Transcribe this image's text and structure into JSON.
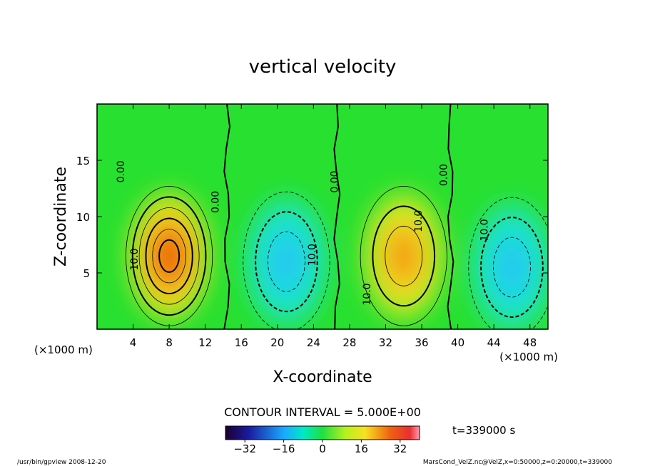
{
  "chart_data": {
    "type": "heatmap",
    "title": "vertical velocity",
    "xlabel": "X-coordinate",
    "ylabel": "Z-coordinate",
    "x_unit_left": "(×1000 m)",
    "x_unit_right": "(×1000 m)",
    "xlim": [
      0,
      50
    ],
    "ylim": [
      0,
      20
    ],
    "x_ticks": [
      4,
      8,
      12,
      16,
      20,
      24,
      28,
      32,
      36,
      40,
      44,
      48
    ],
    "y_ticks": [
      5,
      10,
      15
    ],
    "contour_interval_text": "CONTOUR INTERVAL = 5.000E+00",
    "contour_labels": [
      {
        "text": "0.00",
        "x": 3.0,
        "y": 14.0
      },
      {
        "text": "0.00",
        "x": 13.5,
        "y": 11.3
      },
      {
        "text": "0.00",
        "x": 26.7,
        "y": 13.1
      },
      {
        "text": "0.00",
        "x": 38.8,
        "y": 13.7
      },
      {
        "text": "10.0",
        "x": 4.5,
        "y": 6.2
      },
      {
        "text": "10.0",
        "x": 24.2,
        "y": 6.6
      },
      {
        "text": "10.0",
        "x": 30.3,
        "y": 3.1
      },
      {
        "text": "10.0",
        "x": 36.0,
        "y": 9.6
      },
      {
        "text": "10.0",
        "x": 43.3,
        "y": 8.8
      }
    ],
    "extrema": [
      {
        "sign": "max",
        "x": 8,
        "z": 6.5,
        "value": 30
      },
      {
        "sign": "min",
        "x": 21,
        "z": 6,
        "value": -17
      },
      {
        "sign": "max",
        "x": 34,
        "z": 6.5,
        "value": 19
      },
      {
        "sign": "min",
        "x": 46,
        "z": 5.5,
        "value": -15
      }
    ],
    "colorbar": {
      "min": -40,
      "max": 40,
      "ticks": [
        "-32",
        "-16",
        "0",
        "16",
        "32"
      ]
    },
    "time_label": "t=339000 s",
    "footer_left": "/usr/bin/gpview  2008-12-20",
    "footer_right": "MarsCond_VelZ.nc@VelZ,x=0:50000,z=0:20000,t=339000"
  }
}
